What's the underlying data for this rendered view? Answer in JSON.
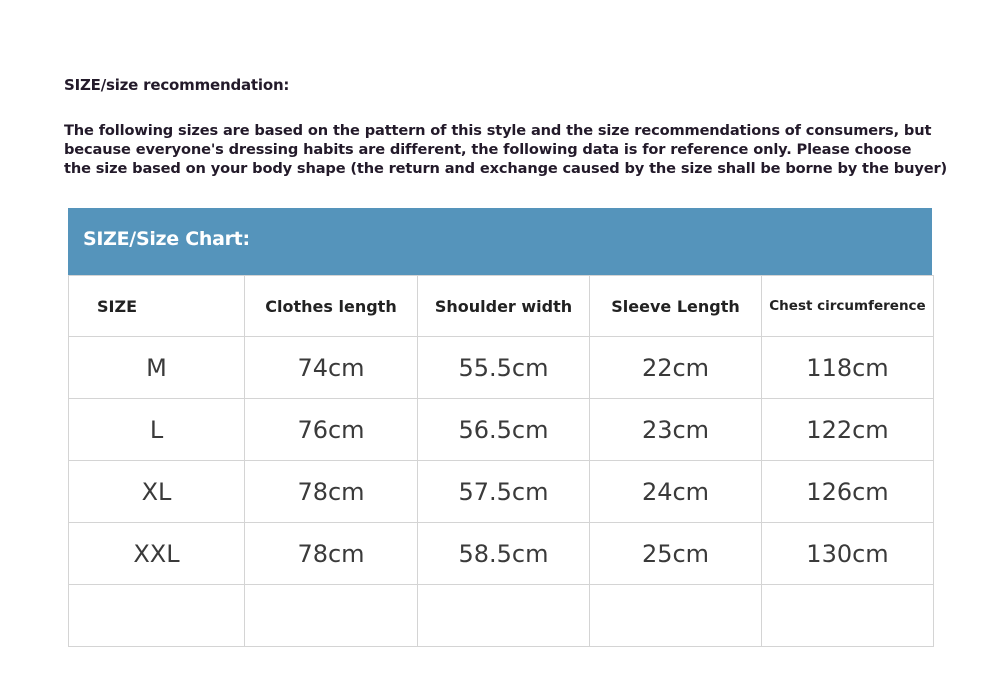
{
  "title": "SIZE/size recommendation:",
  "description": [
    "The following sizes are based on the pattern of this style and the size recommendations of consumers, but",
    "because everyone's dressing habits are different, the following data is for reference only. Please choose",
    "the size based on your body shape (the return and exchange caused by the size shall be borne by the buyer)"
  ],
  "chart_title": "SIZE/Size Chart:",
  "header_color": "#5594bb",
  "columns": [
    "SIZE",
    "Clothes length",
    "Shoulder width",
    "Sleeve Length",
    "Chest circumference"
  ],
  "rows": [
    [
      "M",
      "74cm",
      "55.5cm",
      "22cm",
      "118cm"
    ],
    [
      "L",
      "76cm",
      "56.5cm",
      "23cm",
      "122cm"
    ],
    [
      "XL",
      "78cm",
      "57.5cm",
      "24cm",
      "126cm"
    ],
    [
      "XXL",
      "78cm",
      "58.5cm",
      "25cm",
      "130cm"
    ],
    [
      "",
      "",
      "",
      "",
      ""
    ]
  ]
}
